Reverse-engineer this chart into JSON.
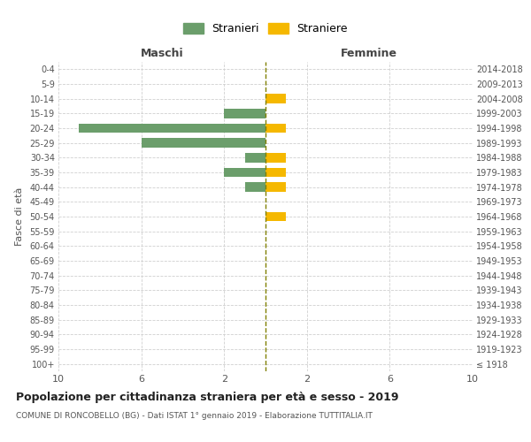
{
  "age_groups": [
    "100+",
    "95-99",
    "90-94",
    "85-89",
    "80-84",
    "75-79",
    "70-74",
    "65-69",
    "60-64",
    "55-59",
    "50-54",
    "45-49",
    "40-44",
    "35-39",
    "30-34",
    "25-29",
    "20-24",
    "15-19",
    "10-14",
    "5-9",
    "0-4"
  ],
  "birth_years": [
    "≤ 1918",
    "1919-1923",
    "1924-1928",
    "1929-1933",
    "1934-1938",
    "1939-1943",
    "1944-1948",
    "1949-1953",
    "1954-1958",
    "1959-1963",
    "1964-1968",
    "1969-1973",
    "1974-1978",
    "1979-1983",
    "1984-1988",
    "1989-1993",
    "1994-1998",
    "1999-2003",
    "2004-2008",
    "2009-2013",
    "2014-2018"
  ],
  "males": [
    0,
    0,
    0,
    0,
    0,
    0,
    0,
    0,
    0,
    0,
    0,
    0,
    1,
    2,
    1,
    6,
    9,
    2,
    0,
    0,
    0
  ],
  "females": [
    0,
    0,
    0,
    0,
    0,
    0,
    0,
    0,
    0,
    0,
    1,
    0,
    1,
    1,
    1,
    0,
    1,
    0,
    1,
    0,
    0
  ],
  "male_color": "#6b9e6b",
  "female_color": "#f5b800",
  "dashed_line_color": "#808000",
  "grid_color": "#d0d0d0",
  "bg_color": "#ffffff",
  "title": "Popolazione per cittadinanza straniera per età e sesso - 2019",
  "subtitle": "COMUNE DI RONCOBELLO (BG) - Dati ISTAT 1° gennaio 2019 - Elaborazione TUTTITALIA.IT",
  "ylabel_left": "Fasce di età",
  "xlabel_left": "Maschi",
  "xlabel_right": "Femmine",
  "legend_stranieri": "Stranieri",
  "legend_straniere": "Straniere",
  "xlim": 10,
  "xtick_positions": [
    -10,
    -6,
    -2,
    2,
    6,
    10
  ],
  "xtick_labels": [
    "10",
    "6",
    "2",
    "2",
    "6",
    "10"
  ]
}
